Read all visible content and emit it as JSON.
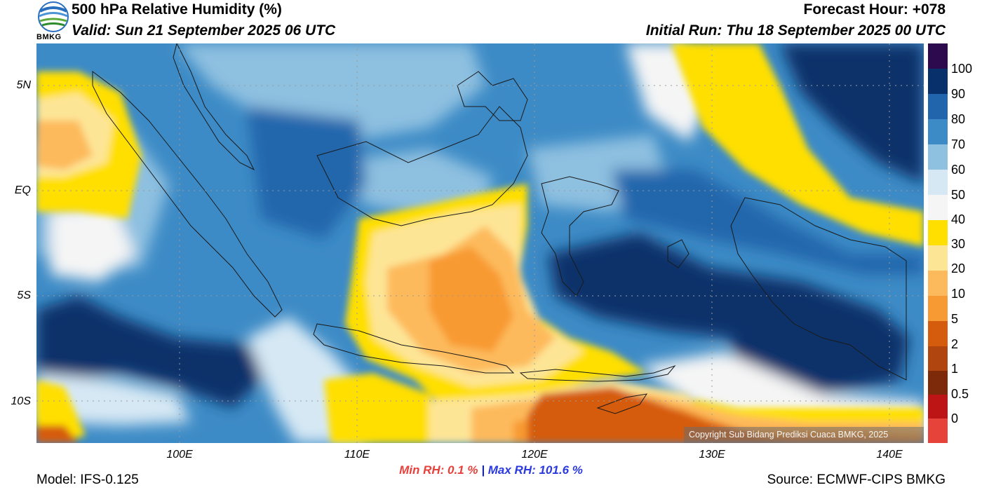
{
  "header": {
    "title": "500 hPa Relative Humidity (%)",
    "valid": "Valid: Sun 21 September 2025 06 UTC",
    "forecast_hour": "Forecast Hour: +078",
    "initial_run": "Initial Run: Thu 18 September 2025 00 UTC",
    "logo_text": "BMKG"
  },
  "map": {
    "lat_labels": [
      "5N",
      "EQ",
      "5S",
      "10S"
    ],
    "lon_labels": [
      "100E",
      "110E",
      "120E",
      "130E",
      "140E"
    ],
    "copyright": "Copyright Sub Bidang Prediksi Cuaca BMKG, 2025",
    "palette": {
      "v100": "#2d0a4e",
      "v90": "#08306b",
      "v80": "#2166ac",
      "v70": "#3d8bc6",
      "v60": "#8ec0e0",
      "v50": "#d6e8f4",
      "v40": "#f5f5f5",
      "v30": "#ffdf00",
      "v20": "#fde596",
      "v10": "#fdba5c",
      "v5": "#f89a33",
      "v2": "#d55c0d",
      "v1": "#b04510",
      "v05": "#7c2a0a",
      "v0": "#bd1515",
      "vneg": "#e6433a"
    }
  },
  "colorbar": {
    "labels": [
      "100",
      "90",
      "80",
      "70",
      "60",
      "50",
      "40",
      "30",
      "20",
      "10",
      "5",
      "2",
      "1",
      "0.5",
      "0"
    ]
  },
  "footer": {
    "min_label": "Min RH:   0.1 %",
    "separator": "|",
    "max_label": "Max RH: 101.6 %",
    "model": "Model: IFS-0.125",
    "source": "Source: ECMWF-CIPS BMKG"
  }
}
